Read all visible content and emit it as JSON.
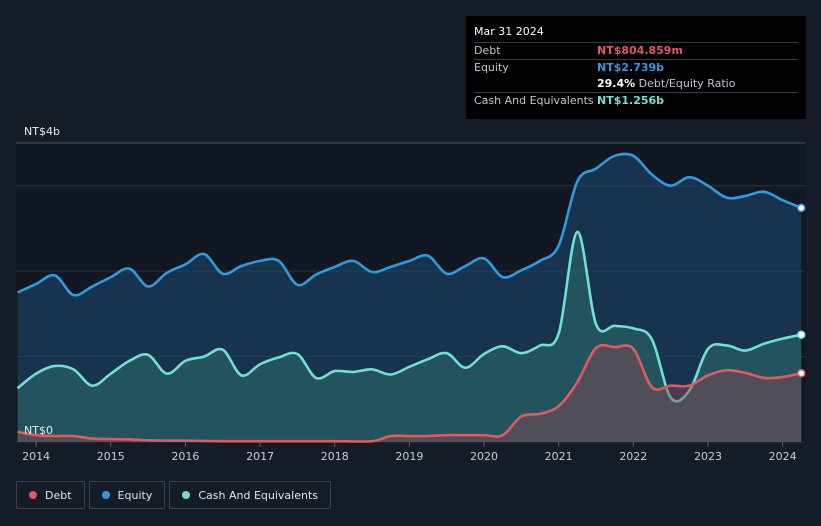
{
  "tooltip": {
    "date": "Mar 31 2024",
    "rows": {
      "debt": {
        "label": "Debt",
        "value": "NT$804.859m"
      },
      "equity": {
        "label": "Equity",
        "value": "NT$2.739b"
      },
      "ratio": {
        "value": "29.4%",
        "label": "Debt/Equity Ratio"
      },
      "cash": {
        "label": "Cash And Equivalents",
        "value": "NT$1.256b"
      }
    }
  },
  "legend": [
    {
      "label": "Debt",
      "color": "#e05a5f"
    },
    {
      "label": "Equity",
      "color": "#2f9ae0"
    },
    {
      "label": "Cash And Equivalents",
      "color": "#6fe0d2"
    }
  ],
  "chart_data": {
    "type": "area",
    "y_top_label": "NT$4b",
    "y_bottom_label": "NT$0",
    "ylim": [
      0,
      3.5
    ],
    "xlim": [
      2013.73,
      2024.3
    ],
    "x_ticks": [
      2014,
      2015,
      2016,
      2017,
      2018,
      2019,
      2020,
      2021,
      2022,
      2023,
      2024
    ],
    "gridlines_y": [
      0,
      1,
      2,
      3,
      3.5
    ],
    "series": [
      {
        "name": "Equity",
        "color": "#2f9ae0",
        "points": [
          [
            2013.75,
            1.75
          ],
          [
            2014.0,
            1.85
          ],
          [
            2014.25,
            1.95
          ],
          [
            2014.5,
            1.72
          ],
          [
            2014.75,
            1.82
          ],
          [
            2015.0,
            1.93
          ],
          [
            2015.25,
            2.03
          ],
          [
            2015.5,
            1.82
          ],
          [
            2015.75,
            1.98
          ],
          [
            2016.0,
            2.08
          ],
          [
            2016.25,
            2.2
          ],
          [
            2016.5,
            1.97
          ],
          [
            2016.75,
            2.06
          ],
          [
            2017.0,
            2.12
          ],
          [
            2017.25,
            2.12
          ],
          [
            2017.5,
            1.84
          ],
          [
            2017.75,
            1.96
          ],
          [
            2018.0,
            2.05
          ],
          [
            2018.25,
            2.12
          ],
          [
            2018.5,
            1.99
          ],
          [
            2018.75,
            2.05
          ],
          [
            2019.0,
            2.12
          ],
          [
            2019.25,
            2.18
          ],
          [
            2019.5,
            1.97
          ],
          [
            2019.75,
            2.06
          ],
          [
            2020.0,
            2.15
          ],
          [
            2020.25,
            1.93
          ],
          [
            2020.5,
            2.01
          ],
          [
            2020.75,
            2.12
          ],
          [
            2021.0,
            2.3
          ],
          [
            2021.25,
            3.05
          ],
          [
            2021.5,
            3.2
          ],
          [
            2021.75,
            3.35
          ],
          [
            2022.0,
            3.35
          ],
          [
            2022.25,
            3.13
          ],
          [
            2022.5,
            3.0
          ],
          [
            2022.75,
            3.1
          ],
          [
            2023.0,
            3.0
          ],
          [
            2023.25,
            2.86
          ],
          [
            2023.5,
            2.88
          ],
          [
            2023.75,
            2.93
          ],
          [
            2024.0,
            2.83
          ],
          [
            2024.25,
            2.74
          ]
        ]
      },
      {
        "name": "Cash And Equivalents",
        "color": "#6fe0d2",
        "points": [
          [
            2013.75,
            0.63
          ],
          [
            2014.0,
            0.8
          ],
          [
            2014.25,
            0.89
          ],
          [
            2014.5,
            0.85
          ],
          [
            2014.75,
            0.66
          ],
          [
            2015.0,
            0.8
          ],
          [
            2015.25,
            0.95
          ],
          [
            2015.5,
            1.02
          ],
          [
            2015.75,
            0.8
          ],
          [
            2016.0,
            0.95
          ],
          [
            2016.25,
            1.0
          ],
          [
            2016.5,
            1.08
          ],
          [
            2016.75,
            0.78
          ],
          [
            2017.0,
            0.91
          ],
          [
            2017.25,
            0.99
          ],
          [
            2017.5,
            1.03
          ],
          [
            2017.75,
            0.75
          ],
          [
            2018.0,
            0.83
          ],
          [
            2018.25,
            0.82
          ],
          [
            2018.5,
            0.85
          ],
          [
            2018.75,
            0.79
          ],
          [
            2019.0,
            0.88
          ],
          [
            2019.25,
            0.97
          ],
          [
            2019.5,
            1.04
          ],
          [
            2019.75,
            0.87
          ],
          [
            2020.0,
            1.03
          ],
          [
            2020.25,
            1.12
          ],
          [
            2020.5,
            1.04
          ],
          [
            2020.75,
            1.13
          ],
          [
            2021.0,
            1.27
          ],
          [
            2021.25,
            2.46
          ],
          [
            2021.5,
            1.38
          ],
          [
            2021.75,
            1.36
          ],
          [
            2022.0,
            1.33
          ],
          [
            2022.25,
            1.2
          ],
          [
            2022.5,
            0.52
          ],
          [
            2022.75,
            0.6
          ],
          [
            2023.0,
            1.09
          ],
          [
            2023.25,
            1.13
          ],
          [
            2023.5,
            1.07
          ],
          [
            2023.75,
            1.15
          ],
          [
            2024.0,
            1.21
          ],
          [
            2024.25,
            1.256
          ]
        ]
      },
      {
        "name": "Debt",
        "color": "#e05a5f",
        "points": [
          [
            2013.75,
            0.12
          ],
          [
            2014.0,
            0.08
          ],
          [
            2014.25,
            0.07
          ],
          [
            2014.5,
            0.07
          ],
          [
            2014.75,
            0.04
          ],
          [
            2015.0,
            0.035
          ],
          [
            2015.25,
            0.03
          ],
          [
            2015.5,
            0.02
          ],
          [
            2015.75,
            0.015
          ],
          [
            2016.0,
            0.015
          ],
          [
            2016.5,
            0.01
          ],
          [
            2017.0,
            0.01
          ],
          [
            2017.5,
            0.01
          ],
          [
            2018.0,
            0.01
          ],
          [
            2018.5,
            0.01
          ],
          [
            2018.75,
            0.07
          ],
          [
            2019.0,
            0.07
          ],
          [
            2019.25,
            0.07
          ],
          [
            2019.5,
            0.08
          ],
          [
            2019.75,
            0.08
          ],
          [
            2020.0,
            0.08
          ],
          [
            2020.25,
            0.08
          ],
          [
            2020.5,
            0.3
          ],
          [
            2020.75,
            0.33
          ],
          [
            2021.0,
            0.42
          ],
          [
            2021.25,
            0.7
          ],
          [
            2021.5,
            1.1
          ],
          [
            2021.75,
            1.11
          ],
          [
            2022.0,
            1.09
          ],
          [
            2022.25,
            0.64
          ],
          [
            2022.5,
            0.66
          ],
          [
            2022.75,
            0.66
          ],
          [
            2023.0,
            0.78
          ],
          [
            2023.25,
            0.84
          ],
          [
            2023.5,
            0.81
          ],
          [
            2023.75,
            0.75
          ],
          [
            2024.0,
            0.76
          ],
          [
            2024.25,
            0.805
          ]
        ]
      }
    ]
  }
}
